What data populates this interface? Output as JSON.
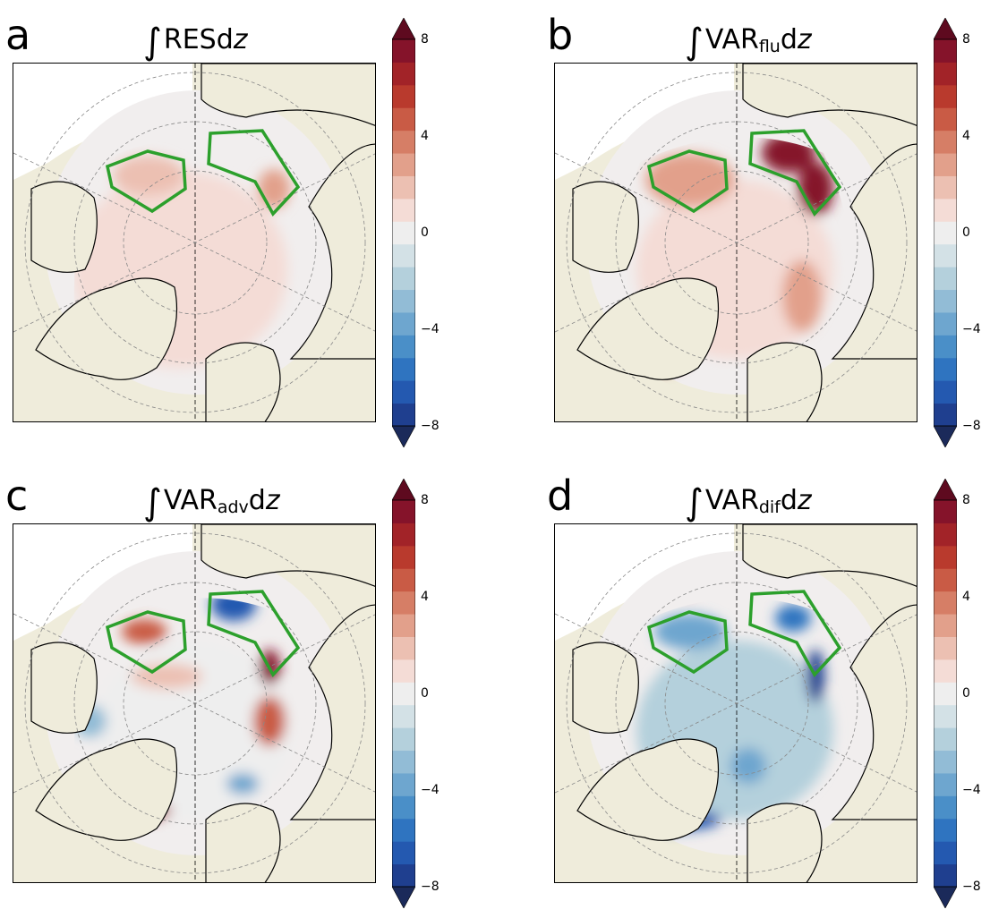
{
  "panels": [
    {
      "letter": "a",
      "title_main": "RES",
      "title_sub": "",
      "title_suffix": "d",
      "title_var": "z",
      "field": "res"
    },
    {
      "letter": "b",
      "title_main": "VAR",
      "title_sub": "flu",
      "title_suffix": "d",
      "title_var": "z",
      "field": "flu"
    },
    {
      "letter": "c",
      "title_main": "VAR",
      "title_sub": "adv",
      "title_suffix": "d",
      "title_var": "z",
      "field": "adv"
    },
    {
      "letter": "d",
      "title_main": "VAR",
      "title_sub": "dif",
      "title_suffix": "d",
      "title_var": "z",
      "field": "dif"
    }
  ],
  "integral_symbol": "∫",
  "colorbar": {
    "ticks": [
      "8",
      "4",
      "0",
      "−4",
      "−8"
    ],
    "vmin": -8,
    "vmax": 8,
    "colors_low_to_high": [
      "#1b2a5a",
      "#1f3f8f",
      "#2459b0",
      "#2f74c0",
      "#4a8fc8",
      "#6ea6cf",
      "#92bcd6",
      "#b4d0dc",
      "#d3e1e6",
      "#eeeeee",
      "#f4dcd6",
      "#ecc0b2",
      "#e2a08b",
      "#d67e66",
      "#c95b45",
      "#b93a2d",
      "#a22328",
      "#85132a",
      "#5e0a1f"
    ]
  },
  "map_colors": {
    "land": "#efecdb",
    "ocean_bg": "#ffffff",
    "region_outline": "#2ca02c",
    "coastline": "#000000",
    "gridline": "#888888"
  }
}
